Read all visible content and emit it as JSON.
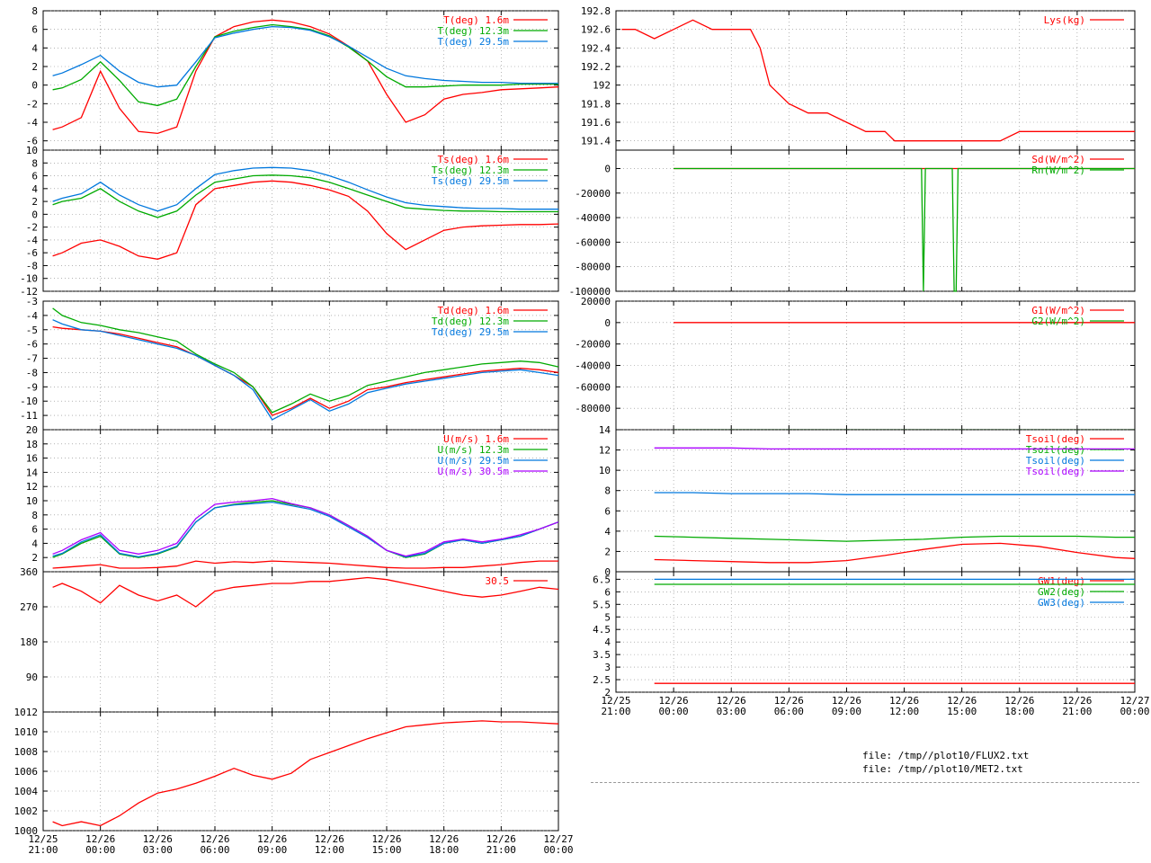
{
  "colors": {
    "red": "#ff0000",
    "green": "#00aa00",
    "blue": "#0077dd",
    "magenta": "#aa00ff",
    "grid": "#888888"
  },
  "time_axis": {
    "left": [
      "12/25\n21:00",
      "12/26\n00:00",
      "12/26\n03:00",
      "12/26\n06:00",
      "12/26\n09:00",
      "12/26\n12:00",
      "12/26\n15:00",
      "12/26\n18:00",
      "12/26\n21:00",
      "12/27\n00:00"
    ],
    "right": [
      "12/25\n21:00",
      "12/26\n00:00",
      "12/26\n03:00",
      "12/26\n06:00",
      "12/26\n09:00",
      "12/26\n12:00",
      "12/26\n15:00",
      "12/26\n18:00",
      "12/26\n21:00",
      "12/27\n00:00"
    ]
  },
  "files": [
    "file: /tmp//plot10/FLUX2.txt",
    "file: /tmp//plot10/MET2.txt"
  ],
  "chart_data": [
    {
      "id": "T",
      "type": "line",
      "ylim": [
        -7,
        8
      ],
      "yticks": [
        -6,
        -4,
        -2,
        0,
        2,
        4,
        6,
        8
      ],
      "grid": true,
      "legend": "top-right",
      "x": [
        0.5,
        1,
        2,
        3,
        4,
        5,
        6,
        7,
        8,
        9,
        10,
        11,
        12,
        13,
        14,
        15,
        16,
        17,
        18,
        19,
        20,
        21,
        22,
        23,
        24,
        25,
        26,
        27
      ],
      "series": [
        {
          "name": "T(deg)  1.6m",
          "color": "red",
          "values": [
            -4.8,
            -4.5,
            -3.5,
            1.5,
            -2.5,
            -5,
            -5.2,
            -4.5,
            1.5,
            5.2,
            6.3,
            6.8,
            7,
            6.8,
            6.3,
            5.5,
            4.2,
            2.6,
            -1,
            -4,
            -3.2,
            -1.5,
            -1,
            -0.8,
            -0.5,
            -0.4,
            -0.3,
            -0.2
          ]
        },
        {
          "name": "T(deg) 12.3m",
          "color": "green",
          "values": [
            -0.5,
            -0.3,
            0.6,
            2.5,
            0.5,
            -1.8,
            -2.2,
            -1.5,
            2,
            5.2,
            5.8,
            6.2,
            6.5,
            6.3,
            6,
            5.3,
            4.1,
            2.6,
            0.9,
            -0.2,
            -0.2,
            -0.1,
            0,
            0,
            0,
            0.1,
            0.1,
            0.1
          ]
        },
        {
          "name": "T(deg) 29.5m",
          "color": "blue",
          "values": [
            1,
            1.3,
            2.2,
            3.2,
            1.5,
            0.3,
            -0.2,
            0,
            2.5,
            5.1,
            5.6,
            6,
            6.3,
            6.2,
            5.9,
            5.2,
            4.2,
            3,
            1.8,
            1,
            0.7,
            0.5,
            0.4,
            0.3,
            0.3,
            0.2,
            0.2,
            0.2
          ]
        }
      ]
    },
    {
      "id": "Ts",
      "type": "line",
      "ylim": [
        -12,
        10
      ],
      "yticks": [
        -12,
        -10,
        -8,
        -6,
        -4,
        -2,
        0,
        2,
        4,
        6,
        8,
        10
      ],
      "grid": true,
      "legend": "top-right",
      "x": [
        0.5,
        1,
        2,
        3,
        4,
        5,
        6,
        7,
        8,
        9,
        10,
        11,
        12,
        13,
        14,
        15,
        16,
        17,
        18,
        19,
        20,
        21,
        22,
        23,
        24,
        25,
        26,
        27
      ],
      "series": [
        {
          "name": "Ts(deg)  1.6m",
          "color": "red",
          "values": [
            -6.5,
            -6,
            -4.5,
            -4,
            -5,
            -6.5,
            -7,
            -6,
            1.5,
            4,
            4.5,
            5,
            5.2,
            5,
            4.5,
            3.8,
            2.8,
            0.5,
            -3,
            -5.5,
            -4,
            -2.5,
            -2,
            -1.8,
            -1.7,
            -1.6,
            -1.6,
            -1.5
          ]
        },
        {
          "name": "Ts(deg) 12.3m",
          "color": "green",
          "values": [
            1.5,
            2,
            2.5,
            4,
            2,
            0.5,
            -0.5,
            0.5,
            3,
            5,
            5.5,
            6,
            6.1,
            6,
            5.7,
            5,
            4,
            3,
            2,
            1,
            0.8,
            0.6,
            0.5,
            0.5,
            0.4,
            0.4,
            0.4,
            0.4
          ]
        },
        {
          "name": "Ts(deg) 29.5m",
          "color": "blue",
          "values": [
            2,
            2.5,
            3.2,
            5,
            3,
            1.5,
            0.5,
            1.5,
            4,
            6.2,
            6.8,
            7.2,
            7.3,
            7.2,
            6.8,
            6,
            5,
            3.8,
            2.7,
            1.8,
            1.4,
            1.2,
            1,
            0.9,
            0.9,
            0.8,
            0.8,
            0.8
          ]
        }
      ]
    },
    {
      "id": "Td",
      "type": "line",
      "ylim": [
        -12,
        -3
      ],
      "yticks": [
        -11,
        -10,
        -9,
        -8,
        -7,
        -6,
        -5,
        -4,
        -3
      ],
      "grid": true,
      "legend": "top-right",
      "x": [
        0.5,
        1,
        2,
        3,
        4,
        5,
        6,
        7,
        8,
        9,
        10,
        11,
        12,
        13,
        14,
        15,
        16,
        17,
        18,
        19,
        20,
        21,
        22,
        23,
        24,
        25,
        26,
        27
      ],
      "series": [
        {
          "name": "Td(deg)  1.6m",
          "color": "red",
          "values": [
            -4.8,
            -4.9,
            -5,
            -5.1,
            -5.3,
            -5.6,
            -5.9,
            -6.2,
            -6.8,
            -7.5,
            -8.2,
            -9,
            -11,
            -10.5,
            -9.8,
            -10.5,
            -10,
            -9.2,
            -9,
            -8.7,
            -8.5,
            -8.3,
            -8.1,
            -7.9,
            -7.8,
            -7.7,
            -7.8,
            -8
          ]
        },
        {
          "name": "Td(deg) 12.3m",
          "color": "green",
          "values": [
            -3.5,
            -4,
            -4.5,
            -4.7,
            -5,
            -5.2,
            -5.5,
            -5.8,
            -6.7,
            -7.4,
            -8,
            -9,
            -10.8,
            -10.2,
            -9.5,
            -10,
            -9.6,
            -8.9,
            -8.6,
            -8.3,
            -8,
            -7.8,
            -7.6,
            -7.4,
            -7.3,
            -7.2,
            -7.3,
            -7.6
          ]
        },
        {
          "name": "Td(deg) 29.5m",
          "color": "blue",
          "values": [
            -4.3,
            -4.6,
            -5,
            -5.1,
            -5.4,
            -5.7,
            -6,
            -6.3,
            -6.8,
            -7.5,
            -8.2,
            -9.2,
            -11.3,
            -10.6,
            -9.9,
            -10.7,
            -10.2,
            -9.4,
            -9.1,
            -8.8,
            -8.6,
            -8.4,
            -8.2,
            -8,
            -7.9,
            -7.8,
            -8,
            -8.2
          ]
        }
      ]
    },
    {
      "id": "U",
      "type": "line",
      "ylim": [
        0,
        20
      ],
      "yticks": [
        2,
        4,
        6,
        8,
        10,
        12,
        14,
        16,
        18,
        20
      ],
      "grid": true,
      "legend": "top-right",
      "x": [
        0.5,
        1,
        2,
        3,
        4,
        5,
        6,
        7,
        8,
        9,
        10,
        11,
        12,
        13,
        14,
        15,
        16,
        17,
        18,
        19,
        20,
        21,
        22,
        23,
        24,
        25,
        26,
        27
      ],
      "series": [
        {
          "name": "U(m/s)  1.6m",
          "color": "red",
          "values": [
            0.5,
            0.6,
            0.8,
            1,
            0.5,
            0.5,
            0.6,
            0.8,
            1.5,
            1.2,
            1.4,
            1.3,
            1.5,
            1.4,
            1.3,
            1.2,
            1,
            0.8,
            0.6,
            0.5,
            0.5,
            0.6,
            0.6,
            0.8,
            1,
            1.3,
            1.5,
            1.5
          ]
        },
        {
          "name": "U(m/s) 12.3m",
          "color": "green",
          "values": [
            2,
            2.5,
            4,
            5,
            2.5,
            2,
            2.5,
            3.5,
            7,
            9,
            9.5,
            9.8,
            10,
            9.5,
            9,
            8,
            6.5,
            5,
            3,
            2,
            2.5,
            4,
            4.5,
            4,
            4.5,
            5,
            6,
            7
          ]
        },
        {
          "name": "U(m/s) 29.5m",
          "color": "blue",
          "values": [
            2.2,
            2.6,
            4.2,
            5.2,
            2.6,
            2.1,
            2.6,
            3.6,
            7,
            9,
            9.4,
            9.6,
            9.8,
            9.3,
            8.8,
            7.8,
            6.3,
            4.8,
            3,
            2.1,
            2.6,
            4,
            4.5,
            4,
            4.5,
            5,
            6,
            7
          ]
        },
        {
          "name": "U(m/s) 30.5m",
          "color": "magenta",
          "values": [
            2.5,
            3,
            4.5,
            5.5,
            3,
            2.5,
            3,
            4,
            7.5,
            9.5,
            9.8,
            10,
            10.3,
            9.6,
            9,
            8,
            6.5,
            5,
            3,
            2.2,
            2.8,
            4.2,
            4.6,
            4.2,
            4.6,
            5.2,
            6,
            7
          ]
        }
      ]
    },
    {
      "id": "dir",
      "type": "line",
      "ylim": [
        0,
        360
      ],
      "yticks": [
        90,
        180,
        270,
        360
      ],
      "grid": true,
      "legend": "top-right",
      "x": [
        0.5,
        1,
        2,
        3,
        4,
        5,
        6,
        7,
        8,
        9,
        10,
        11,
        12,
        13,
        14,
        15,
        16,
        17,
        18,
        19,
        20,
        21,
        22,
        23,
        24,
        25,
        26,
        27
      ],
      "series": [
        {
          "name": "30.5",
          "color": "red",
          "values": [
            320,
            330,
            310,
            280,
            325,
            300,
            285,
            300,
            270,
            310,
            320,
            325,
            330,
            330,
            335,
            335,
            340,
            345,
            340,
            330,
            320,
            310,
            300,
            295,
            300,
            310,
            320,
            315
          ]
        }
      ]
    },
    {
      "id": "P",
      "type": "line",
      "ylim": [
        1000,
        1012
      ],
      "yticks": [
        1000,
        1002,
        1004,
        1006,
        1008,
        1010,
        1012
      ],
      "grid": true,
      "legend": "none",
      "x": [
        0.5,
        1,
        2,
        3,
        4,
        5,
        6,
        7,
        8,
        9,
        10,
        11,
        12,
        13,
        14,
        15,
        16,
        17,
        18,
        19,
        20,
        21,
        22,
        23,
        24,
        25,
        26,
        27
      ],
      "series": [
        {
          "name": "",
          "color": "red",
          "values": [
            1000.9,
            1000.5,
            1000.9,
            1000.5,
            1001.5,
            1002.8,
            1003.8,
            1004.2,
            1004.8,
            1005.5,
            1006.3,
            1005.6,
            1005.2,
            1005.8,
            1007.2,
            1007.9,
            1008.6,
            1009.3,
            1009.9,
            1010.5,
            1010.7,
            1010.9,
            1011.0,
            1011.1,
            1011.0,
            1011.0,
            1010.9,
            1010.8
          ]
        }
      ]
    },
    {
      "id": "Lys",
      "type": "line",
      "ylim": [
        191.3,
        192.8
      ],
      "yticks": [
        191.4,
        191.6,
        191.8,
        192,
        192.2,
        192.4,
        192.6,
        192.8
      ],
      "grid": true,
      "legend": "top-right",
      "x": [
        0.3,
        1,
        2,
        3,
        4,
        5,
        6,
        7,
        7.5,
        8,
        9,
        10,
        11,
        12,
        13,
        14,
        14.5,
        15,
        16,
        17,
        18,
        19,
        20,
        21,
        22,
        23,
        24,
        25,
        26,
        27
      ],
      "series": [
        {
          "name": "Lys(kg)",
          "color": "red",
          "values": [
            192.6,
            192.6,
            192.5,
            192.6,
            192.7,
            192.6,
            192.6,
            192.6,
            192.4,
            192.0,
            191.8,
            191.7,
            191.7,
            191.6,
            191.5,
            191.5,
            191.4,
            191.4,
            191.4,
            191.4,
            191.4,
            191.4,
            191.4,
            191.5,
            191.5,
            191.5,
            191.5,
            191.5,
            191.5,
            191.5
          ]
        }
      ]
    },
    {
      "id": "Rad",
      "type": "line",
      "ylim": [
        -100000,
        15000
      ],
      "yticks": [
        -100000,
        -80000,
        -60000,
        -40000,
        -20000,
        0
      ],
      "grid": true,
      "legend": "top-right",
      "x": [
        3,
        11,
        13,
        14.5,
        15.9,
        16,
        16.1,
        17.5,
        17.6,
        17.7,
        17.8,
        18,
        27
      ],
      "series": [
        {
          "name": "Sd(W/m^2)",
          "color": "red",
          "values": [
            0,
            0,
            0,
            0,
            0,
            0,
            0,
            0,
            0,
            0,
            0,
            0,
            0
          ]
        },
        {
          "name": "Rn(W/m^2)",
          "color": "green",
          "values": [
            0,
            0,
            0,
            0,
            0,
            -100000,
            0,
            0,
            -100000,
            -100000,
            0,
            0,
            0
          ]
        }
      ]
    },
    {
      "id": "G",
      "type": "line",
      "ylim": [
        -100000,
        20000
      ],
      "yticks": [
        -80000,
        -60000,
        -40000,
        -20000,
        0,
        20000
      ],
      "grid": true,
      "legend": "top-right",
      "x": [
        3,
        27
      ],
      "series": [
        {
          "name": "G1(W/m^2)",
          "color": "red",
          "values": [
            0,
            0
          ]
        },
        {
          "name": "G2(W/m^2)",
          "color": "green",
          "values": [
            -100000,
            -100000
          ]
        }
      ]
    },
    {
      "id": "Tsoil",
      "type": "line",
      "ylim": [
        0,
        14
      ],
      "yticks": [
        0,
        2,
        4,
        6,
        8,
        10,
        12,
        14
      ],
      "grid": true,
      "legend": "top-right",
      "x": [
        2,
        4,
        6,
        8,
        10,
        12,
        14,
        16,
        18,
        20,
        22,
        24,
        26,
        27
      ],
      "series": [
        {
          "name": "Tsoil(deg)",
          "color": "red",
          "values": [
            1.2,
            1.1,
            1.0,
            0.9,
            0.9,
            1.1,
            1.6,
            2.2,
            2.7,
            2.8,
            2.5,
            1.9,
            1.4,
            1.3
          ]
        },
        {
          "name": "Tsoil(deg)",
          "color": "green",
          "values": [
            3.5,
            3.4,
            3.3,
            3.2,
            3.1,
            3.0,
            3.1,
            3.2,
            3.4,
            3.5,
            3.5,
            3.5,
            3.4,
            3.4
          ]
        },
        {
          "name": "Tsoil(deg)",
          "color": "blue",
          "values": [
            7.8,
            7.8,
            7.7,
            7.7,
            7.7,
            7.6,
            7.6,
            7.6,
            7.6,
            7.6,
            7.6,
            7.6,
            7.6,
            7.6
          ]
        },
        {
          "name": "Tsoil(deg)",
          "color": "magenta",
          "values": [
            12.2,
            12.2,
            12.2,
            12.1,
            12.1,
            12.1,
            12.1,
            12.1,
            12.1,
            12.1,
            12.1,
            12.1,
            12.1,
            12.1
          ]
        }
      ]
    },
    {
      "id": "GW",
      "type": "line",
      "ylim": [
        2,
        6.8
      ],
      "yticks": [
        2,
        2.5,
        3,
        3.5,
        4,
        4.5,
        5,
        5.5,
        6,
        6.5
      ],
      "grid": true,
      "legend": "top-right",
      "x": [
        2,
        27
      ],
      "series": [
        {
          "name": "GW1(deg)",
          "color": "red",
          "values": [
            2.35,
            2.35
          ]
        },
        {
          "name": "GW2(deg)",
          "color": "green",
          "values": [
            6.3,
            6.3
          ]
        },
        {
          "name": "GW3(deg)",
          "color": "blue",
          "values": [
            6.5,
            6.5
          ]
        }
      ]
    }
  ]
}
